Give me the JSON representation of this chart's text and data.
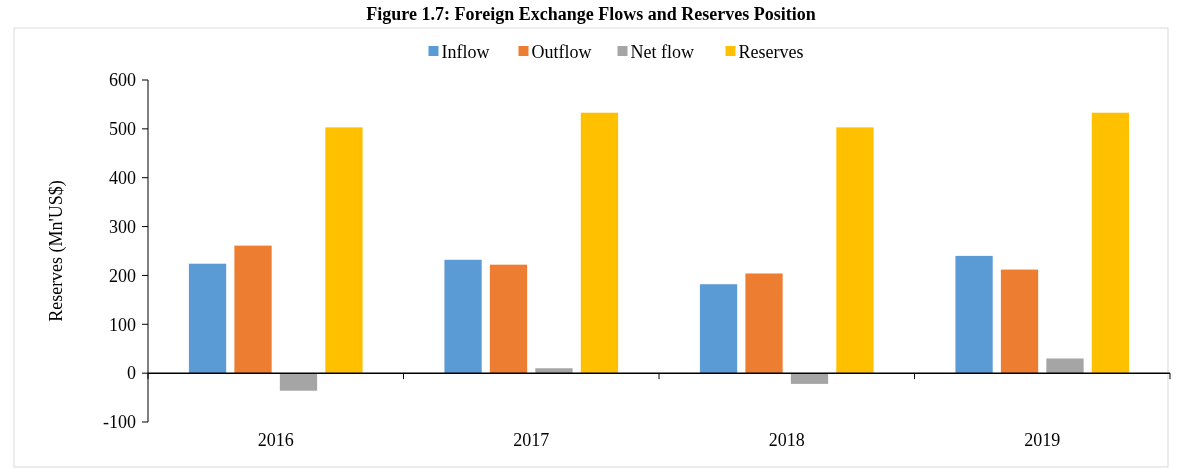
{
  "chart_data": {
    "type": "bar",
    "title": "Figure 1.7: Foreign Exchange Flows and Reserves Position",
    "ylabel": "Reserves (Mn'US$)",
    "categories": [
      "2016",
      "2017",
      "2018",
      "2019"
    ],
    "series": [
      {
        "name": "Inflow",
        "color": "#5b9bd5",
        "values": [
          224,
          232,
          182,
          240
        ]
      },
      {
        "name": "Outflow",
        "color": "#ed7d31",
        "values": [
          261,
          222,
          204,
          212
        ]
      },
      {
        "name": "Net flow",
        "color": "#a5a5a5",
        "values": [
          -36,
          10,
          -22,
          30
        ]
      },
      {
        "name": "Reserves",
        "color": "#ffc000",
        "values": [
          503,
          533,
          503,
          533
        ]
      }
    ],
    "ylim": [
      -100,
      600
    ],
    "yticks": [
      -100,
      0,
      100,
      200,
      300,
      400,
      500,
      600
    ],
    "legend": "top"
  }
}
